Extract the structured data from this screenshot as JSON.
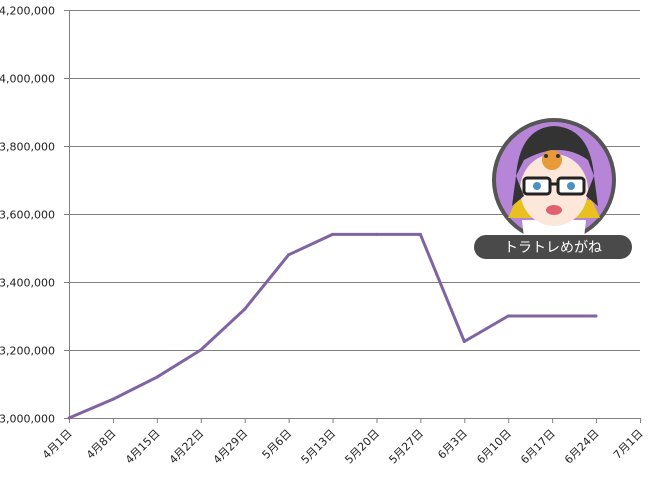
{
  "chart_data": {
    "type": "line",
    "title": "",
    "xlabel": "",
    "ylabel": "",
    "categories": [
      "4月1日",
      "4月8日",
      "4月15日",
      "4月22日",
      "4月29日",
      "5月6日",
      "5月13日",
      "5月20日",
      "5月27日",
      "6月3日",
      "6月10日",
      "6月17日",
      "6月24日",
      "7月1日"
    ],
    "series": [
      {
        "values": [
          3000000,
          3055000,
          3120000,
          3200000,
          3320000,
          3480000,
          3540000,
          3540000,
          3540000,
          3225000,
          3300000,
          3300000,
          3300000,
          null
        ]
      }
    ],
    "ylim": [
      3000000,
      4200000
    ],
    "yticks": [
      "3,000,000",
      "3,200,000",
      "3,400,000",
      "3,600,000",
      "3,800,000",
      "4,000,000",
      "4,200,000"
    ],
    "ytick_values": [
      3000000,
      3200000,
      3400000,
      3600000,
      3800000,
      4000000,
      4200000
    ],
    "grid": true,
    "line_color": "#8064a2"
  },
  "badge": {
    "label": "トラトレめがね",
    "circle_color": "#b685d8",
    "label_bg": "#4a4a4a"
  }
}
